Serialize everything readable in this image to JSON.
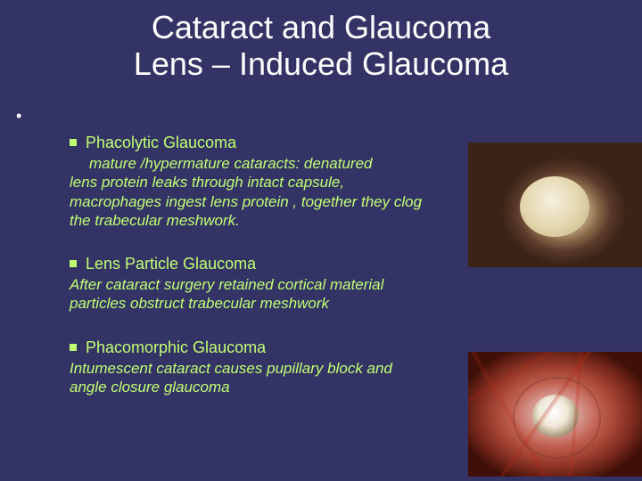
{
  "title_line1": "Cataract and Glaucoma",
  "title_line2": "Lens – Induced Glaucoma",
  "title_fontsize": 36,
  "title_color": "#ffffff",
  "background_color": "#333366",
  "body_color": "#c1ff72",
  "body_fontsize": 17,
  "heading_fontsize": 18,
  "sections": [
    {
      "heading": "Phacolytic Glaucoma",
      "body_start_indent": "mature /hypermature  cataracts: denatured",
      "body_rest": "lens protein leaks through intact capsule, macrophages ingest lens protein , together they clog the trabecular meshwork."
    },
    {
      "heading": "Lens Particle Glaucoma",
      "body": "After cataract surgery  retained cortical material particles obstruct trabecular meshwork"
    },
    {
      "heading": "Phacomorphic Glaucoma",
      "body": "Intumescent cataract causes pupillary block and angle closure glaucoma"
    }
  ],
  "images": [
    {
      "name": "phacolytic-eye",
      "alt": "Mature cataract eye close-up"
    },
    {
      "name": "phacomorphic-eye",
      "alt": "Inflamed eye with cataract close-up"
    }
  ]
}
